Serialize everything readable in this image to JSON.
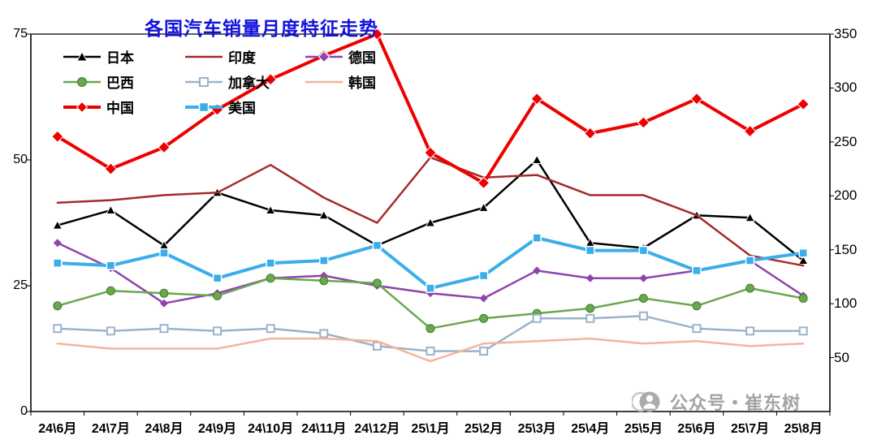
{
  "chart_data": {
    "type": "line",
    "title": "各国汽车销量月度特征走势",
    "grid": false,
    "legend_position": "top-left-inside",
    "categories": [
      "24\\6月",
      "24\\7月",
      "24\\8月",
      "24\\9月",
      "24\\10月",
      "24\\11月",
      "24\\12月",
      "25\\1月",
      "25\\2月",
      "25\\3月",
      "25\\4月",
      "25\\5月",
      "25\\6月",
      "25\\7月",
      "25\\8月"
    ],
    "left_axis": {
      "min": 0,
      "max": 75,
      "ticks": [
        0,
        25,
        50,
        75
      ]
    },
    "right_axis": {
      "min": 0,
      "max": 350,
      "ticks": [
        50,
        100,
        150,
        200,
        250,
        300,
        350
      ]
    },
    "series": [
      {
        "name": "日本",
        "color": "#000000",
        "axis": "left",
        "marker": "triangle",
        "line_width": 2.5,
        "values": [
          37,
          40,
          33,
          43.5,
          40,
          39,
          33,
          37.5,
          40.5,
          50,
          33.5,
          32.5,
          39,
          38.5,
          30
        ]
      },
      {
        "name": "印度",
        "color": "#A52A2A",
        "axis": "left",
        "marker": "none",
        "line_width": 2.5,
        "values": [
          41.5,
          42,
          43,
          43.5,
          49,
          42.5,
          37.5,
          50.5,
          46.5,
          47,
          43,
          43,
          39,
          31,
          29
        ]
      },
      {
        "name": "德国",
        "color": "#8E44AD",
        "axis": "left",
        "marker": "diamond",
        "line_width": 2.5,
        "values": [
          33.5,
          28.5,
          21.5,
          23.5,
          26.5,
          27,
          25,
          23.5,
          22.5,
          28,
          26.5,
          26.5,
          28,
          30,
          23
        ]
      },
      {
        "name": "巴西",
        "color": "#6AA84F",
        "axis": "left",
        "marker": "circle",
        "line_width": 2.5,
        "values": [
          21,
          24,
          23.5,
          23,
          26.5,
          26,
          25.5,
          16.5,
          18.5,
          19.5,
          20.5,
          22.5,
          21,
          24.5,
          22.5
        ]
      },
      {
        "name": "加拿大",
        "color": "#99B3CC",
        "axis": "left",
        "marker": "square-open",
        "line_width": 2.5,
        "values": [
          16.5,
          16,
          16.5,
          16,
          16.5,
          15.5,
          13,
          12,
          12,
          18.5,
          18.5,
          19,
          16.5,
          16,
          16
        ]
      },
      {
        "name": "韩国",
        "color": "#F4B49C",
        "axis": "left",
        "marker": "none",
        "line_width": 2.5,
        "values": [
          13.5,
          12.5,
          12.5,
          12.5,
          14.5,
          14.5,
          14,
          10,
          13.5,
          14,
          14.5,
          13.5,
          14,
          13,
          13.5
        ]
      },
      {
        "name": "中国",
        "color": "#EE0000",
        "axis": "right",
        "marker": "diamond",
        "line_width": 4,
        "values": [
          255,
          225,
          245,
          280,
          308,
          330,
          350,
          240,
          212,
          290,
          258,
          268,
          290,
          260,
          285
        ]
      },
      {
        "name": "美国",
        "color": "#3AAEE8",
        "axis": "left",
        "marker": "square",
        "line_width": 4,
        "values": [
          29.5,
          29,
          31.5,
          26.5,
          29.5,
          30,
          33,
          24.5,
          27,
          34.5,
          32,
          32,
          28,
          30,
          31.5
        ]
      }
    ]
  },
  "watermark": {
    "text": "公众号・崔东树"
  }
}
